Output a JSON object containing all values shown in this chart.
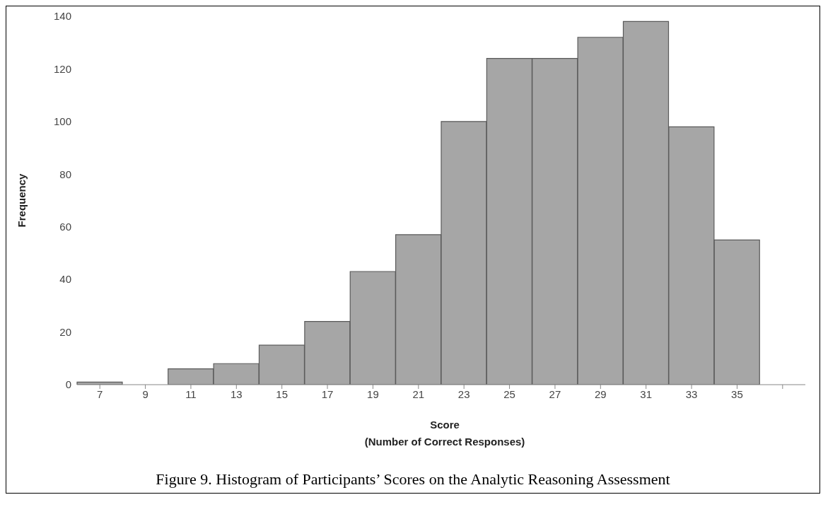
{
  "chart_data": {
    "type": "bar",
    "ylabel": "Frequency",
    "xlabel": "Score\n(Number of Correct Responses)",
    "categories": [
      "7",
      "9",
      "11",
      "13",
      "15",
      "17",
      "19",
      "21",
      "23",
      "25",
      "27",
      "29",
      "31",
      "33",
      "35",
      null
    ],
    "values": [
      1,
      0,
      6,
      8,
      15,
      24,
      43,
      57,
      100,
      124,
      124,
      132,
      138,
      98,
      55,
      0
    ],
    "color": "#a6a6a6",
    "ylim": [
      0,
      140
    ],
    "yticks": [
      0,
      20,
      40,
      60,
      80,
      100,
      120,
      140
    ],
    "grid": false,
    "annotations": [
      "Figure 9. Histogram of Participants’ Scores on the Analytic Reasoning Assessment"
    ]
  }
}
